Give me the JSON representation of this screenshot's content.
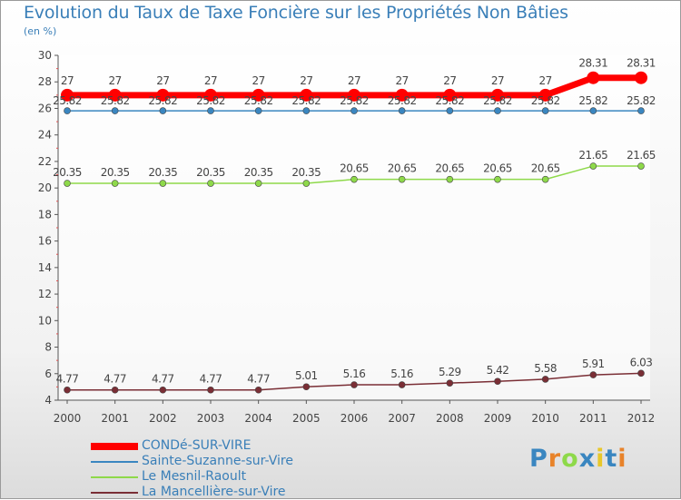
{
  "chart_data": {
    "type": "line",
    "title": "Evolution du Taux de Taxe Foncière sur les Propriétés Non Bâties",
    "unit": "(en %)",
    "x": [
      "2000",
      "2001",
      "2002",
      "2003",
      "2004",
      "2005",
      "2006",
      "2007",
      "2008",
      "2009",
      "2010",
      "2011",
      "2012"
    ],
    "ylim": [
      4,
      30
    ],
    "yticks": [
      "4",
      "6",
      "8",
      "10",
      "12",
      "14",
      "16",
      "18",
      "20",
      "22",
      "24",
      "26",
      "28",
      "30"
    ],
    "series": [
      {
        "name": "CONDé-SUR-VIRE",
        "color": "#ff0000",
        "values": [
          27,
          27,
          27,
          27,
          27,
          27,
          27,
          27,
          27,
          27,
          27,
          28.31,
          28.31
        ],
        "labels": [
          "27",
          "27",
          "27",
          "27",
          "27",
          "27",
          "27",
          "27",
          "27",
          "27",
          "27",
          "28.31",
          "28.31"
        ]
      },
      {
        "name": "Sainte-Suzanne-sur-Vire",
        "color": "#3a86c0",
        "values": [
          25.82,
          25.82,
          25.82,
          25.82,
          25.82,
          25.82,
          25.82,
          25.82,
          25.82,
          25.82,
          25.82,
          25.82,
          25.82
        ],
        "labels": [
          "25.82",
          "25.82",
          "25.82",
          "25.82",
          "25.82",
          "25.82",
          "25.82",
          "25.82",
          "25.82",
          "25.82",
          "25.82",
          "25.82",
          "25.82"
        ]
      },
      {
        "name": "Le Mesnil-Raoult",
        "color": "#8ed94a",
        "values": [
          20.35,
          20.35,
          20.35,
          20.35,
          20.35,
          20.35,
          20.65,
          20.65,
          20.65,
          20.65,
          20.65,
          21.65,
          21.65
        ],
        "labels": [
          "20.35",
          "20.35",
          "20.35",
          "20.35",
          "20.35",
          "20.35",
          "20.65",
          "20.65",
          "20.65",
          "20.65",
          "20.65",
          "21.65",
          "21.65"
        ]
      },
      {
        "name": "La Mancellière-sur-Vire",
        "color": "#7a2e35",
        "values": [
          4.77,
          4.77,
          4.77,
          4.77,
          4.77,
          5.01,
          5.16,
          5.16,
          5.29,
          5.42,
          5.58,
          5.91,
          6.03
        ],
        "labels": [
          "4.77",
          "4.77",
          "4.77",
          "4.77",
          "4.77",
          "5.01",
          "5.16",
          "5.16",
          "5.29",
          "5.42",
          "5.58",
          "5.91",
          "6.03"
        ]
      }
    ]
  },
  "brand": {
    "letters": [
      "P",
      "r",
      "o",
      "x",
      "i",
      "t",
      "i"
    ],
    "colors": [
      "#3a86c0",
      "#e8832a",
      "#8ed94a",
      "#3a86c0",
      "#e8c72a",
      "#3a86c0",
      "#e8832a"
    ]
  }
}
